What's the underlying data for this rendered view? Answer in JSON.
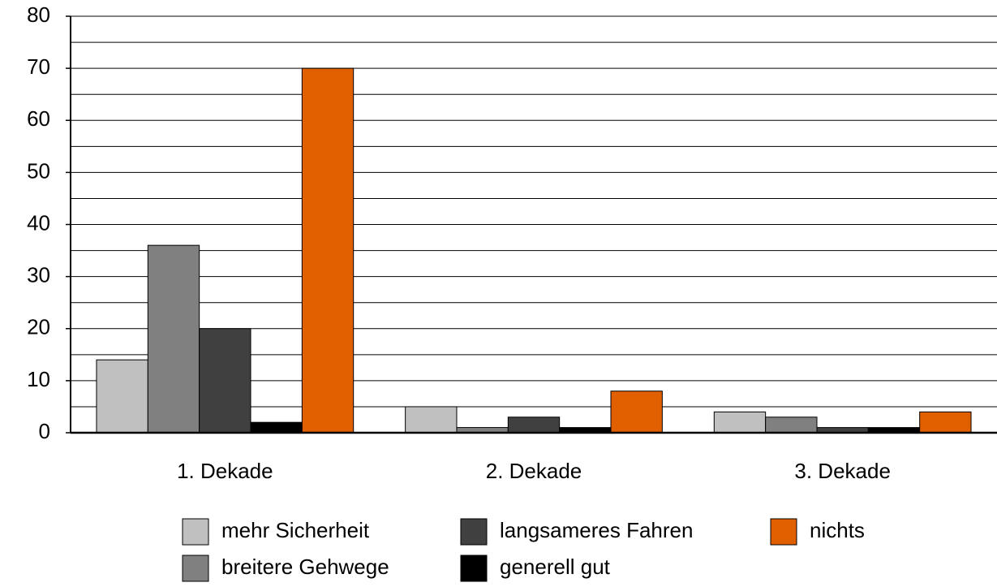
{
  "chart_data": {
    "type": "bar",
    "categories": [
      "1. Dekade",
      "2. Dekade",
      "3. Dekade"
    ],
    "series": [
      {
        "name": "mehr Sicherheit",
        "color": "#c0c0c0",
        "values": [
          14,
          5,
          4
        ]
      },
      {
        "name": "breitere Gehwege",
        "color": "#808080",
        "values": [
          36,
          1,
          3
        ]
      },
      {
        "name": "langsameres Fahren",
        "color": "#404040",
        "values": [
          20,
          3,
          1
        ]
      },
      {
        "name": "generell gut",
        "color": "#000000",
        "values": [
          2,
          1,
          1
        ]
      },
      {
        "name": "nichts",
        "color": "#e06000",
        "values": [
          70,
          8,
          4
        ]
      }
    ],
    "ylim": [
      0,
      80
    ],
    "yticks": [
      0,
      10,
      20,
      30,
      40,
      50,
      60,
      70,
      80
    ],
    "grid": true
  }
}
